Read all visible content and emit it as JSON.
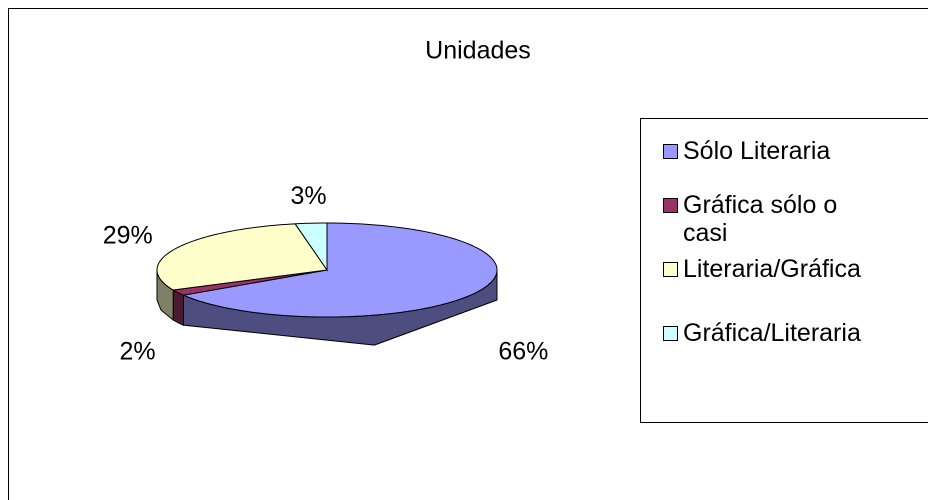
{
  "chart_data": {
    "type": "pie",
    "title": "Unidades",
    "categories": [
      "Sólo Literaria",
      "Gráfica sólo o casi",
      "Literaria/Gráfica",
      "Gráfica/Literaria"
    ],
    "values": [
      66,
      2,
      29,
      3
    ],
    "value_labels": [
      "66%",
      "2%",
      "29%",
      "3%"
    ],
    "colors": [
      "#9999ff",
      "#993366",
      "#ffffcc",
      "#ccffff"
    ],
    "legend": "right"
  }
}
